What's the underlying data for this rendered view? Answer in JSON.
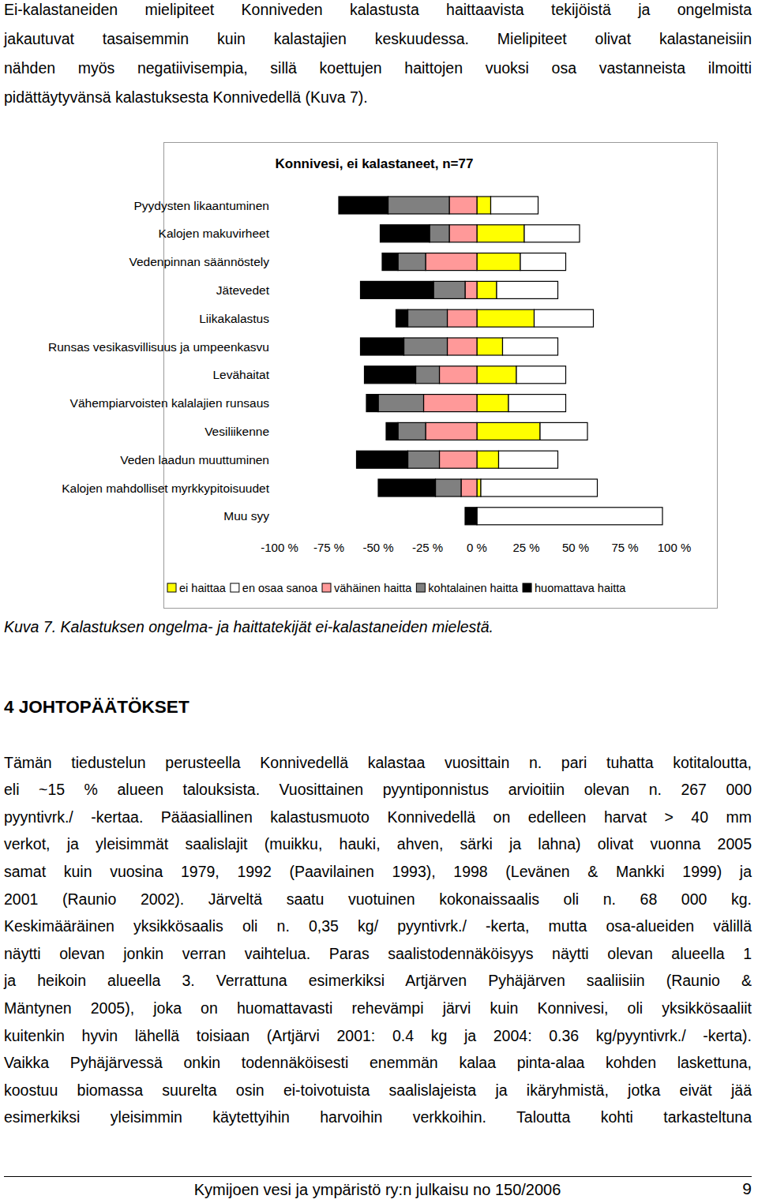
{
  "intro": {
    "lines": [
      "Ei-kalastaneiden mielipiteet Konniveden kalastusta haittaavista tekijöistä ja ongelmista",
      "jakautuvat tasaisemmin kuin kalastajien keskuudessa. Mielipiteet olivat kalastaneisiin",
      "nähden myös negatiivisempia, sillä koettujen haittojen vuoksi osa vastanneista ilmoitti",
      "pidättäytyvänsä kalastuksesta Konnivedellä (Kuva 7)."
    ]
  },
  "chart_data": {
    "type": "bar",
    "title": "Konnivesi, ei kalastaneet, n=77",
    "orientation": "horizontal",
    "stacked": true,
    "legend": "bottom",
    "categories": [
      "Pyydysten likaantuminen",
      "Kalojen makuvirheet",
      "Vedenpinnan säännöstely",
      "Jätevedet",
      "Liikakalastus",
      "Runsas vesikasvillisuus ja umpeenkasvu",
      "Levähaitat",
      "Vähempiarvoisten kalalajien runsaus",
      "Vesiliikenne",
      "Veden laadun muuttuminen",
      "Kalojen mahdolliset myrkkypitoisuudet",
      "Muu syy"
    ],
    "series": [
      {
        "name": "ei haittaa",
        "color": "#ffff00",
        "values": [
          7,
          24,
          22,
          10,
          29,
          13,
          20,
          16,
          32,
          11,
          2,
          0
        ]
      },
      {
        "name": "en osaa sanoa",
        "color": "#ffffff",
        "values": [
          24,
          28,
          23,
          31,
          30,
          28,
          25,
          29,
          24,
          30,
          59,
          94
        ]
      },
      {
        "name": "vähäinen haitta",
        "color": "#ff9999",
        "values": [
          -14,
          -14,
          -26,
          -6,
          -15,
          -15,
          -19,
          -27,
          -26,
          -19,
          -8,
          0
        ]
      },
      {
        "name": "kohtalainen haitta",
        "color": "#808080",
        "values": [
          -31,
          -10,
          -14,
          -16,
          -20,
          -22,
          -12,
          -23,
          -14,
          -16,
          -13,
          0
        ]
      },
      {
        "name": "huomattava haitta",
        "color": "#000000",
        "values": [
          -25,
          -25,
          -8,
          -37,
          -6,
          -22,
          -26,
          -6,
          -6,
          -26,
          -29,
          -6
        ]
      }
    ],
    "xlim": [
      -100,
      100
    ],
    "xticks": [
      {
        "value": -100,
        "label": "-100 %"
      },
      {
        "value": -75,
        "label": "-75 %"
      },
      {
        "value": -50,
        "label": "-50 %"
      },
      {
        "value": -25,
        "label": "-25 %"
      },
      {
        "value": 0,
        "label": "0 %"
      },
      {
        "value": 25,
        "label": "25 %"
      },
      {
        "value": 50,
        "label": "50 %"
      },
      {
        "value": 75,
        "label": "75 %"
      },
      {
        "value": 100,
        "label": "100 %"
      }
    ]
  },
  "caption": "Kuva 7. Kalastuksen ongelma- ja haittatekijät ei-kalastaneiden mielestä.",
  "heading": "4 JOHTOPÄÄTÖKSET",
  "conclusions": {
    "lines": [
      "Tämän tiedustelun perusteella Konnivedellä kalastaa vuosittain n. pari tuhatta kotitaloutta,",
      "eli ~15 % alueen talouksista. Vuosittainen pyyntiponnistus arvioitiin olevan n. 267 000",
      "pyyntivrk./ -kertaa. Pääasiallinen kalastusmuoto Konnivedellä on edelleen harvat > 40 mm",
      "verkot, ja yleisimmät saalislajit (muikku, hauki, ahven, särki ja lahna) olivat vuonna 2005",
      "samat kuin vuosina 1979, 1992 (Paavilainen 1993), 1998 (Levänen & Mankki 1999) ja",
      "2001 (Raunio 2002). Järveltä saatu vuotuinen kokonaissaalis oli n. 68 000 kg.",
      "Keskimääräinen yksikkösaalis oli n. 0,35 kg/ pyyntivrk./ -kerta, mutta osa-alueiden välillä",
      "näytti olevan jonkin verran vaihtelua. Paras saalistodennäköisyys näytti olevan alueella 1",
      "ja heikoin alueella 3. Verrattuna esimerkiksi Artjärven Pyhäjärven saaliisiin (Raunio &",
      "Mäntynen 2005), joka on huomattavasti rehevämpi järvi kuin Konnivesi, oli yksikkösaaliit",
      "kuitenkin hyvin lähellä toisiaan (Artjärvi 2001: 0.4 kg ja 2004: 0.36 kg/pyyntivrk./ -kerta).",
      "Vaikka Pyhäjärvessä onkin todennäköisesti enemmän kalaa pinta-alaa kohden laskettuna,",
      "koostuu biomassa suurelta osin ei-toivotuista saalislajeista ja ikäryhmistä, jotka eivät jää",
      "esimerkiksi yleisimmin käytettyihin harvoihin verkkoihin. Taloutta kohti tarkasteltuna"
    ]
  },
  "footer": {
    "publication": "Kymijoen vesi ja ympäristö ry:n julkaisu no 150/2006",
    "page": 9
  }
}
